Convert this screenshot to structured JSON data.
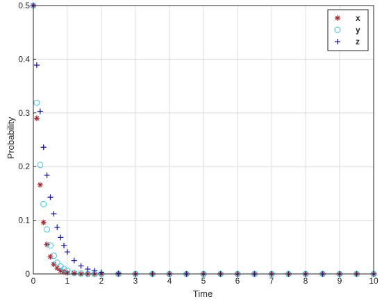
{
  "chart_data": {
    "type": "scatter",
    "xlabel": "Time",
    "ylabel": "Probability",
    "xlim": [
      0,
      10
    ],
    "ylim": [
      0,
      0.5
    ],
    "xticks": [
      "0",
      "1",
      "2",
      "3",
      "4",
      "5",
      "6",
      "7",
      "8",
      "9",
      "10"
    ],
    "yticks": [
      "0",
      "0.1",
      "0.2",
      "0.3",
      "0.4",
      "0.5"
    ],
    "grid": true,
    "legend_position": "top-right",
    "series": [
      {
        "name": "x",
        "marker": "asterisk",
        "color": "#a6272d",
        "decay_rate": 5.5,
        "x": [
          0,
          0.1,
          0.2,
          0.3,
          0.4,
          0.5,
          0.6,
          0.7,
          0.8,
          0.9,
          1.0,
          1.2,
          1.4,
          1.6,
          1.8,
          2.0,
          2.5,
          3.0,
          3.5,
          4.0,
          4.5,
          5.0,
          5.5,
          6.0,
          6.5,
          7.0,
          7.5,
          8.0,
          8.5,
          9.0,
          9.5,
          10.0
        ],
        "y": [
          0.5,
          0.29,
          0.166,
          0.096,
          0.055,
          0.032,
          0.018,
          0.011,
          0.006,
          0.004,
          0.002,
          0.001,
          0.0,
          0.0,
          0.0,
          0.0,
          0.0,
          0.0,
          0.0,
          0.0,
          0.0,
          0.0,
          0.0,
          0.0,
          0.0,
          0.0,
          0.0,
          0.0,
          0.0,
          0.0,
          0.0,
          0.0
        ]
      },
      {
        "name": "y",
        "marker": "circle",
        "color": "#3fc1e0",
        "decay_rate": 4.5,
        "x": [
          0,
          0.1,
          0.2,
          0.3,
          0.4,
          0.5,
          0.6,
          0.7,
          0.8,
          0.9,
          1.0,
          1.2,
          1.4,
          1.6,
          1.8,
          2.0,
          2.5,
          3.0,
          3.5,
          4.0,
          4.5,
          5.0,
          5.5,
          6.0,
          6.5,
          7.0,
          7.5,
          8.0,
          8.5,
          9.0,
          9.5,
          10.0
        ],
        "y": [
          0.5,
          0.319,
          0.203,
          0.13,
          0.083,
          0.053,
          0.034,
          0.021,
          0.014,
          0.009,
          0.006,
          0.002,
          0.001,
          0.0,
          0.0,
          0.0,
          0.0,
          0.0,
          0.0,
          0.0,
          0.0,
          0.0,
          0.0,
          0.0,
          0.0,
          0.0,
          0.0,
          0.0,
          0.0,
          0.0,
          0.0,
          0.0
        ]
      },
      {
        "name": "z",
        "marker": "plus",
        "color": "#1a1aa6",
        "decay_rate": 2.5,
        "x": [
          0,
          0.1,
          0.2,
          0.3,
          0.4,
          0.5,
          0.6,
          0.7,
          0.8,
          0.9,
          1.0,
          1.2,
          1.4,
          1.6,
          1.8,
          2.0,
          2.5,
          3.0,
          3.5,
          4.0,
          4.5,
          5.0,
          5.5,
          6.0,
          6.5,
          7.0,
          7.5,
          8.0,
          8.5,
          9.0,
          9.5,
          10.0
        ],
        "y": [
          0.5,
          0.389,
          0.303,
          0.236,
          0.184,
          0.143,
          0.112,
          0.087,
          0.068,
          0.053,
          0.041,
          0.025,
          0.015,
          0.009,
          0.006,
          0.003,
          0.001,
          0.0,
          0.0,
          0.0,
          0.0,
          0.0,
          0.0,
          0.0,
          0.0,
          0.0,
          0.0,
          0.0,
          0.0,
          0.0,
          0.0,
          0.0
        ]
      }
    ]
  }
}
